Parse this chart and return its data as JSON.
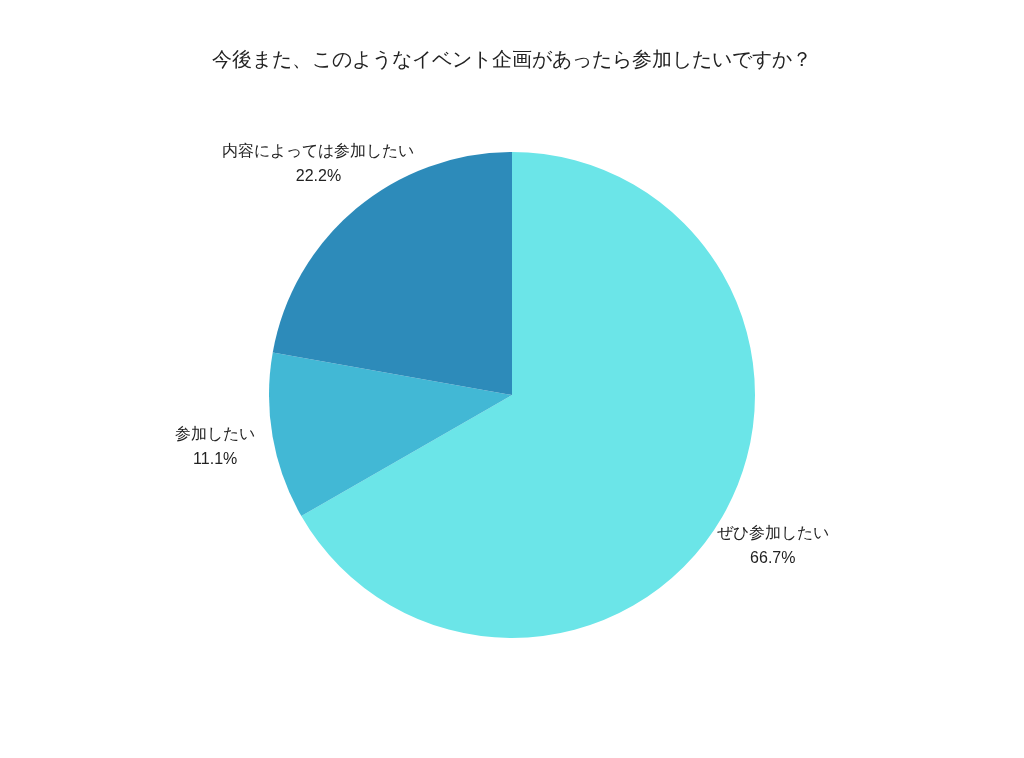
{
  "chart_data": {
    "type": "pie",
    "title": "今後また、このようなイベント企画があったら参加したいですか？",
    "categories": [
      "ぜひ参加したい",
      "参加したい",
      "内容によっては参加したい"
    ],
    "values": [
      66.7,
      11.1,
      22.2
    ],
    "value_labels": [
      "66.7%",
      "11.1%",
      "22.2%"
    ],
    "colors": [
      "#6be5e8",
      "#42b8d5",
      "#2d8bba"
    ],
    "legend": false
  }
}
